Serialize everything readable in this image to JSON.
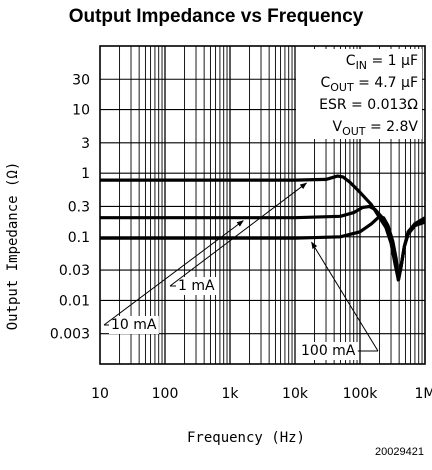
{
  "chart_data": {
    "type": "line",
    "title": "Output Impedance vs Frequency",
    "xlabel": "Frequency (Hz)",
    "ylabel": "Output Impedance (Ω)",
    "xscale": "log",
    "yscale": "log",
    "xlim": [
      10,
      1000000
    ],
    "ylim": [
      0.001,
      100
    ],
    "grid": true,
    "x_ticks": [
      {
        "value": 10,
        "label": "10"
      },
      {
        "value": 100,
        "label": "100"
      },
      {
        "value": 1000,
        "label": "1k"
      },
      {
        "value": 10000,
        "label": "10k"
      },
      {
        "value": 100000,
        "label": "100k"
      },
      {
        "value": 1000000,
        "label": "1M"
      }
    ],
    "y_ticks": [
      {
        "value": 30,
        "label": "30"
      },
      {
        "value": 10,
        "label": "10"
      },
      {
        "value": 3,
        "label": "3"
      },
      {
        "value": 1,
        "label": "1"
      },
      {
        "value": 0.3,
        "label": "0.3"
      },
      {
        "value": 0.1,
        "label": "0.1"
      },
      {
        "value": 0.03,
        "label": "0.03"
      },
      {
        "value": 0.01,
        "label": "0.01"
      },
      {
        "value": 0.003,
        "label": "0.003"
      }
    ],
    "conditions": {
      "cin": {
        "prefix": "C",
        "sub": "IN",
        "value": " = 1 μF"
      },
      "cout": {
        "prefix": "C",
        "sub": "OUT",
        "value": " = 4.7 μF"
      },
      "esr": {
        "text": "ESR = 0.013Ω"
      },
      "vout": {
        "prefix": "V",
        "sub": "OUT",
        "value": " = 2.8V"
      }
    },
    "series": [
      {
        "name": "1 mA",
        "points": [
          [
            10,
            0.78
          ],
          [
            1000,
            0.78
          ],
          [
            10000,
            0.78
          ],
          [
            30000,
            0.8
          ],
          [
            45000,
            0.9
          ],
          [
            55000,
            0.87
          ],
          [
            70000,
            0.72
          ],
          [
            100000,
            0.5
          ],
          [
            150000,
            0.32
          ],
          [
            200000,
            0.2
          ],
          [
            250000,
            0.14
          ],
          [
            300000,
            0.08
          ],
          [
            350000,
            0.035
          ],
          [
            390000,
            0.021
          ],
          [
            430000,
            0.035
          ],
          [
            480000,
            0.07
          ],
          [
            550000,
            0.11
          ],
          [
            700000,
            0.15
          ],
          [
            1000000,
            0.17
          ]
        ]
      },
      {
        "name": "10 mA",
        "points": [
          [
            10,
            0.2
          ],
          [
            1000,
            0.2
          ],
          [
            10000,
            0.2
          ],
          [
            50000,
            0.21
          ],
          [
            80000,
            0.24
          ],
          [
            110000,
            0.29
          ],
          [
            140000,
            0.3
          ],
          [
            170000,
            0.27
          ],
          [
            220000,
            0.2
          ],
          [
            270000,
            0.13
          ],
          [
            320000,
            0.075
          ],
          [
            360000,
            0.04
          ],
          [
            390000,
            0.021
          ],
          [
            430000,
            0.035
          ],
          [
            480000,
            0.07
          ],
          [
            550000,
            0.11
          ],
          [
            700000,
            0.16
          ],
          [
            1000000,
            0.19
          ]
        ]
      },
      {
        "name": "100 mA",
        "points": [
          [
            10,
            0.095
          ],
          [
            1000,
            0.095
          ],
          [
            10000,
            0.095
          ],
          [
            50000,
            0.1
          ],
          [
            100000,
            0.12
          ],
          [
            150000,
            0.16
          ],
          [
            190000,
            0.2
          ],
          [
            230000,
            0.2
          ],
          [
            270000,
            0.15
          ],
          [
            320000,
            0.085
          ],
          [
            360000,
            0.045
          ],
          [
            390000,
            0.021
          ],
          [
            430000,
            0.035
          ],
          [
            480000,
            0.07
          ],
          [
            550000,
            0.12
          ],
          [
            700000,
            0.16
          ],
          [
            1000000,
            0.2
          ]
        ]
      }
    ],
    "annotations": [
      {
        "text": "1 mA",
        "target": [
          15000,
          0.78
        ]
      },
      {
        "text": "10 mA",
        "target": [
          1600,
          0.2
        ]
      },
      {
        "text": "100 mA",
        "target": [
          18000,
          0.095
        ]
      }
    ]
  },
  "figure_id": "20029421"
}
